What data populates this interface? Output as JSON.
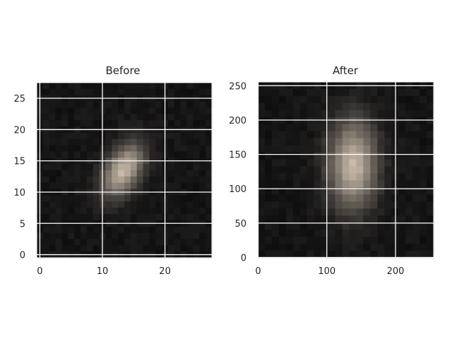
{
  "chart_data": [
    {
      "type": "heatmap",
      "title": "Before",
      "xlabel": "",
      "ylabel": "",
      "image_size": [
        28,
        28
      ],
      "xticks": [
        0,
        10,
        20
      ],
      "yticks": [
        0,
        5,
        10,
        15,
        20,
        25
      ],
      "xlim": [
        -0.5,
        27.5
      ],
      "ylim": [
        27.5,
        -0.5
      ],
      "grid": true,
      "background_color": "#161515",
      "blob": {
        "center": [
          13.3,
          13.5
        ],
        "sigma": [
          1.9,
          3.2
        ],
        "rotation_deg": 30,
        "peak_color": "#c6b8a8"
      }
    },
    {
      "type": "heatmap",
      "title": "After",
      "xlabel": "",
      "ylabel": "",
      "image_size": [
        256,
        256
      ],
      "xticks": [
        0,
        100,
        200
      ],
      "yticks": [
        0,
        50,
        100,
        150,
        200,
        250
      ],
      "xlim": [
        -0.5,
        255.5
      ],
      "ylim": [
        255.5,
        -0.5
      ],
      "grid": true,
      "background_color": "#161515",
      "blob": {
        "center": [
          138,
          120
        ],
        "sigma": [
          24,
          44
        ],
        "rotation_deg": 0,
        "peak_color": "#c6b8a8"
      }
    }
  ]
}
